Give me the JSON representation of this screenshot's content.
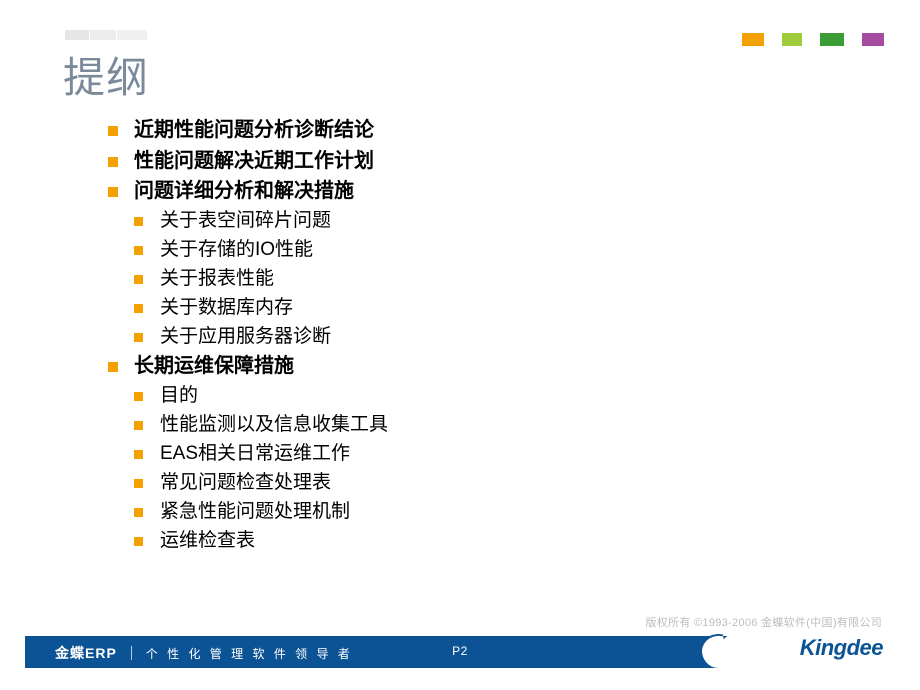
{
  "title": "提纲",
  "accent_blocks": {
    "colors": [
      "#f2a100",
      "#a0cc3b",
      "#3d9b35",
      "#a54ca0"
    ],
    "widths": [
      22,
      20,
      24,
      22
    ],
    "gap": 18
  },
  "bullets": {
    "color": "#f4a100",
    "size_l1": 10,
    "size_l2": 9
  },
  "outline": [
    {
      "text": "近期性能问题分析诊断结论"
    },
    {
      "text": "性能问题解决近期工作计划"
    },
    {
      "text": "问题详细分析和解决措施",
      "children": [
        {
          "text": "关于表空间碎片问题"
        },
        {
          "text": "关于存储的IO性能"
        },
        {
          "text": "关于报表性能"
        },
        {
          "text": "关于数据库内存"
        },
        {
          "text": "关于应用服务器诊断"
        }
      ]
    },
    {
      "text": "长期运维保障措施",
      "children": [
        {
          "text": "目的"
        },
        {
          "text": "性能监测以及信息收集工具"
        },
        {
          "text": "EAS相关日常运维工作"
        },
        {
          "text": "常见问题检查处理表"
        },
        {
          "text": "紧急性能问题处理机制"
        },
        {
          "text": "运维检查表"
        }
      ]
    }
  ],
  "copyright": "版权所有 ©1993-2006 金蝶软件(中国)有限公司",
  "footer": {
    "background": "#0b5394",
    "erp_label": "金蝶ERP",
    "tagline": "个 性 化 管 理 软 件 领 导 者",
    "page": "P2",
    "logo_text": "Kingdee"
  },
  "typography": {
    "title_fontsize": 42,
    "title_color": "#7a8a9b",
    "l1_fontsize": 20,
    "l1_weight": 700,
    "l2_fontsize": 19,
    "l2_weight": 400,
    "text_color": "#000000",
    "copyright_fontsize": 11,
    "copyright_color": "#bdbdbd"
  }
}
